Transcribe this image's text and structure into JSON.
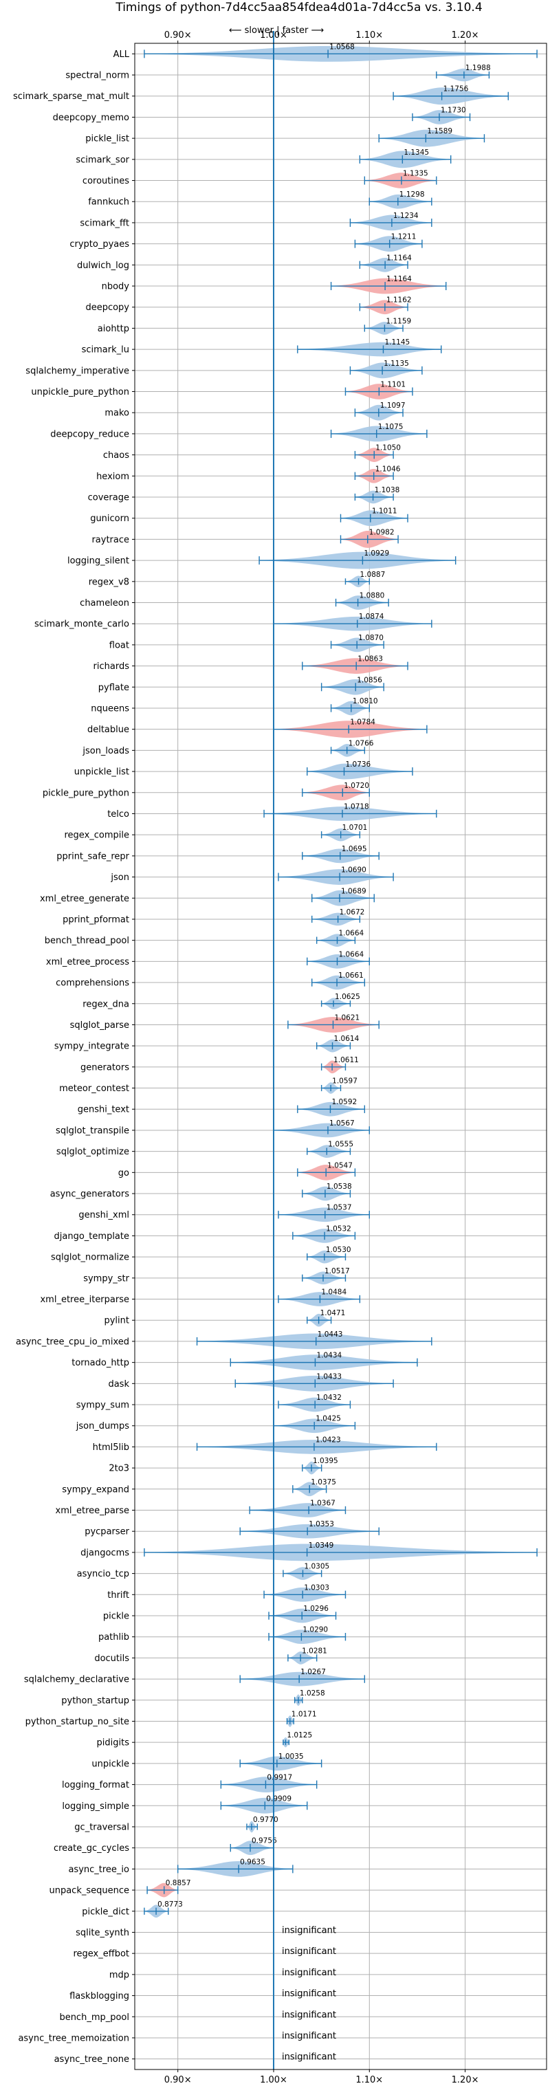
{
  "chart_data": {
    "type": "violin",
    "title": "Timings of python-7d4cc5aa854fdea4d01a-7d4cc5a vs. 3.10.4",
    "direction_note": "⟵ slower | faster ⟶",
    "xlim": [
      0.855,
      1.285
    ],
    "xticks": [
      0.9,
      1.0,
      1.1,
      1.2
    ],
    "xtick_labels": [
      "0.90×",
      "1.00×",
      "1.10×",
      "1.20×"
    ],
    "grid": true,
    "colors": {
      "normal": "#a6c8e6",
      "regressed": "#f4a7a7",
      "line": "#1f77b4",
      "reference": "#1f77b4",
      "grid": "#b0b0b0"
    },
    "insignificant_label": "insignificant",
    "benchmarks": [
      {
        "name": "ALL",
        "value": 1.0568,
        "label": "1.0568",
        "lo": 0.865,
        "hi": 1.275,
        "w": 0.55,
        "c": "n"
      },
      {
        "name": "spectral_norm",
        "value": 1.1988,
        "label": "1.1988",
        "lo": 1.17,
        "hi": 1.225,
        "w": 0.45,
        "c": "n"
      },
      {
        "name": "scimark_sparse_mat_mult",
        "value": 1.1756,
        "label": "1.1756",
        "lo": 1.125,
        "hi": 1.245,
        "w": 0.6,
        "c": "n"
      },
      {
        "name": "deepcopy_memo",
        "value": 1.173,
        "label": "1.1730",
        "lo": 1.145,
        "hi": 1.205,
        "w": 0.5,
        "c": "n"
      },
      {
        "name": "pickle_list",
        "value": 1.1589,
        "label": "1.1589",
        "lo": 1.11,
        "hi": 1.22,
        "w": 0.6,
        "c": "n"
      },
      {
        "name": "scimark_sor",
        "value": 1.1345,
        "label": "1.1345",
        "lo": 1.09,
        "hi": 1.185,
        "w": 0.6,
        "c": "n"
      },
      {
        "name": "coroutines",
        "value": 1.1335,
        "label": "1.1335",
        "lo": 1.095,
        "hi": 1.17,
        "w": 0.55,
        "c": "r"
      },
      {
        "name": "fannkuch",
        "value": 1.1298,
        "label": "1.1298",
        "lo": 1.1,
        "hi": 1.165,
        "w": 0.5,
        "c": "n"
      },
      {
        "name": "scimark_fft",
        "value": 1.1234,
        "label": "1.1234",
        "lo": 1.08,
        "hi": 1.165,
        "w": 0.55,
        "c": "n"
      },
      {
        "name": "crypto_pyaes",
        "value": 1.1211,
        "label": "1.1211",
        "lo": 1.085,
        "hi": 1.155,
        "w": 0.55,
        "c": "n"
      },
      {
        "name": "dulwich_log",
        "value": 1.1164,
        "label": "1.1164",
        "lo": 1.09,
        "hi": 1.14,
        "w": 0.5,
        "c": "n"
      },
      {
        "name": "nbody",
        "value": 1.1164,
        "label": "1.1164",
        "lo": 1.06,
        "hi": 1.18,
        "w": 0.55,
        "c": "r"
      },
      {
        "name": "deepcopy",
        "value": 1.1162,
        "label": "1.1162",
        "lo": 1.09,
        "hi": 1.14,
        "w": 0.5,
        "c": "r"
      },
      {
        "name": "aiohttp",
        "value": 1.1159,
        "label": "1.1159",
        "lo": 1.095,
        "hi": 1.135,
        "w": 0.45,
        "c": "n"
      },
      {
        "name": "scimark_lu",
        "value": 1.1145,
        "label": "1.1145",
        "lo": 1.025,
        "hi": 1.175,
        "w": 0.5,
        "c": "n"
      },
      {
        "name": "sqlalchemy_imperative",
        "value": 1.1135,
        "label": "1.1135",
        "lo": 1.08,
        "hi": 1.155,
        "w": 0.55,
        "c": "n"
      },
      {
        "name": "unpickle_pure_python",
        "value": 1.1101,
        "label": "1.1101",
        "lo": 1.075,
        "hi": 1.145,
        "w": 0.55,
        "c": "r"
      },
      {
        "name": "mako",
        "value": 1.1097,
        "label": "1.1097",
        "lo": 1.085,
        "hi": 1.135,
        "w": 0.55,
        "c": "n"
      },
      {
        "name": "deepcopy_reduce",
        "value": 1.1075,
        "label": "1.1075",
        "lo": 1.06,
        "hi": 1.16,
        "w": 0.55,
        "c": "n"
      },
      {
        "name": "chaos",
        "value": 1.105,
        "label": "1.1050",
        "lo": 1.085,
        "hi": 1.125,
        "w": 0.5,
        "c": "r"
      },
      {
        "name": "hexiom",
        "value": 1.1046,
        "label": "1.1046",
        "lo": 1.085,
        "hi": 1.125,
        "w": 0.5,
        "c": "r"
      },
      {
        "name": "coverage",
        "value": 1.1038,
        "label": "1.1038",
        "lo": 1.085,
        "hi": 1.125,
        "w": 0.45,
        "c": "n"
      },
      {
        "name": "gunicorn",
        "value": 1.1011,
        "label": "1.1011",
        "lo": 1.07,
        "hi": 1.14,
        "w": 0.55,
        "c": "n"
      },
      {
        "name": "raytrace",
        "value": 1.0982,
        "label": "1.0982",
        "lo": 1.07,
        "hi": 1.13,
        "w": 0.6,
        "c": "r"
      },
      {
        "name": "logging_silent",
        "value": 1.0929,
        "label": "1.0929",
        "lo": 0.985,
        "hi": 1.19,
        "w": 0.6,
        "c": "n"
      },
      {
        "name": "regex_v8",
        "value": 1.0887,
        "label": "1.0887",
        "lo": 1.075,
        "hi": 1.1,
        "w": 0.4,
        "c": "n"
      },
      {
        "name": "chameleon",
        "value": 1.088,
        "label": "1.0880",
        "lo": 1.065,
        "hi": 1.12,
        "w": 0.5,
        "c": "n"
      },
      {
        "name": "scimark_monte_carlo",
        "value": 1.0874,
        "label": "1.0874",
        "lo": 1.0,
        "hi": 1.165,
        "w": 0.5,
        "c": "n"
      },
      {
        "name": "float",
        "value": 1.087,
        "label": "1.0870",
        "lo": 1.06,
        "hi": 1.115,
        "w": 0.5,
        "c": "n"
      },
      {
        "name": "richards",
        "value": 1.0863,
        "label": "1.0863",
        "lo": 1.03,
        "hi": 1.14,
        "w": 0.55,
        "c": "r"
      },
      {
        "name": "pyflate",
        "value": 1.0856,
        "label": "1.0856",
        "lo": 1.05,
        "hi": 1.115,
        "w": 0.55,
        "c": "n"
      },
      {
        "name": "nqueens",
        "value": 1.081,
        "label": "1.0810",
        "lo": 1.06,
        "hi": 1.1,
        "w": 0.5,
        "c": "n"
      },
      {
        "name": "deltablue",
        "value": 1.0784,
        "label": "1.0784",
        "lo": 1.0,
        "hi": 1.16,
        "w": 0.6,
        "c": "r"
      },
      {
        "name": "json_loads",
        "value": 1.0766,
        "label": "1.0766",
        "lo": 1.06,
        "hi": 1.095,
        "w": 0.45,
        "c": "n"
      },
      {
        "name": "unpickle_list",
        "value": 1.0736,
        "label": "1.0736",
        "lo": 1.035,
        "hi": 1.145,
        "w": 0.55,
        "c": "n"
      },
      {
        "name": "pickle_pure_python",
        "value": 1.072,
        "label": "1.0720",
        "lo": 1.03,
        "hi": 1.1,
        "w": 0.55,
        "c": "r"
      },
      {
        "name": "telco",
        "value": 1.0718,
        "label": "1.0718",
        "lo": 0.99,
        "hi": 1.17,
        "w": 0.5,
        "c": "n"
      },
      {
        "name": "regex_compile",
        "value": 1.0701,
        "label": "1.0701",
        "lo": 1.05,
        "hi": 1.09,
        "w": 0.45,
        "c": "n"
      },
      {
        "name": "pprint_safe_repr",
        "value": 1.0695,
        "label": "1.0695",
        "lo": 1.03,
        "hi": 1.11,
        "w": 0.5,
        "c": "n"
      },
      {
        "name": "json",
        "value": 1.069,
        "label": "1.0690",
        "lo": 1.005,
        "hi": 1.125,
        "w": 0.55,
        "c": "n"
      },
      {
        "name": "xml_etree_generate",
        "value": 1.0689,
        "label": "1.0689",
        "lo": 1.04,
        "hi": 1.105,
        "w": 0.55,
        "c": "n"
      },
      {
        "name": "pprint_pformat",
        "value": 1.0672,
        "label": "1.0672",
        "lo": 1.04,
        "hi": 1.09,
        "w": 0.45,
        "c": "n"
      },
      {
        "name": "bench_thread_pool",
        "value": 1.0664,
        "label": "1.0664",
        "lo": 1.045,
        "hi": 1.085,
        "w": 0.45,
        "c": "n"
      },
      {
        "name": "xml_etree_process",
        "value": 1.0664,
        "label": "1.0664",
        "lo": 1.035,
        "hi": 1.1,
        "w": 0.5,
        "c": "n"
      },
      {
        "name": "comprehensions",
        "value": 1.0661,
        "label": "1.0661",
        "lo": 1.04,
        "hi": 1.095,
        "w": 0.5,
        "c": "n"
      },
      {
        "name": "regex_dna",
        "value": 1.0625,
        "label": "1.0625",
        "lo": 1.05,
        "hi": 1.08,
        "w": 0.4,
        "c": "n"
      },
      {
        "name": "sqlglot_parse",
        "value": 1.0621,
        "label": "1.0621",
        "lo": 1.015,
        "hi": 1.11,
        "w": 0.55,
        "c": "r"
      },
      {
        "name": "sympy_integrate",
        "value": 1.0614,
        "label": "1.0614",
        "lo": 1.045,
        "hi": 1.08,
        "w": 0.45,
        "c": "n"
      },
      {
        "name": "generators",
        "value": 1.0611,
        "label": "1.0611",
        "lo": 1.05,
        "hi": 1.075,
        "w": 0.45,
        "c": "r"
      },
      {
        "name": "meteor_contest",
        "value": 1.0597,
        "label": "1.0597",
        "lo": 1.05,
        "hi": 1.07,
        "w": 0.4,
        "c": "n"
      },
      {
        "name": "genshi_text",
        "value": 1.0592,
        "label": "1.0592",
        "lo": 1.025,
        "hi": 1.095,
        "w": 0.5,
        "c": "n"
      },
      {
        "name": "sqlglot_transpile",
        "value": 1.0567,
        "label": "1.0567",
        "lo": 1.0,
        "hi": 1.1,
        "w": 0.5,
        "c": "n"
      },
      {
        "name": "sqlglot_optimize",
        "value": 1.0555,
        "label": "1.0555",
        "lo": 1.035,
        "hi": 1.08,
        "w": 0.45,
        "c": "n"
      },
      {
        "name": "go",
        "value": 1.0547,
        "label": "1.0547",
        "lo": 1.025,
        "hi": 1.085,
        "w": 0.55,
        "c": "r"
      },
      {
        "name": "async_generators",
        "value": 1.0538,
        "label": "1.0538",
        "lo": 1.03,
        "hi": 1.08,
        "w": 0.5,
        "c": "n"
      },
      {
        "name": "genshi_xml",
        "value": 1.0537,
        "label": "1.0537",
        "lo": 1.005,
        "hi": 1.1,
        "w": 0.5,
        "c": "n"
      },
      {
        "name": "django_template",
        "value": 1.0532,
        "label": "1.0532",
        "lo": 1.02,
        "hi": 1.085,
        "w": 0.5,
        "c": "n"
      },
      {
        "name": "sqlglot_normalize",
        "value": 1.053,
        "label": "1.0530",
        "lo": 1.035,
        "hi": 1.075,
        "w": 0.45,
        "c": "n"
      },
      {
        "name": "sympy_str",
        "value": 1.0517,
        "label": "1.0517",
        "lo": 1.03,
        "hi": 1.075,
        "w": 0.45,
        "c": "n"
      },
      {
        "name": "xml_etree_iterparse",
        "value": 1.0484,
        "label": "1.0484",
        "lo": 1.005,
        "hi": 1.09,
        "w": 0.5,
        "c": "n"
      },
      {
        "name": "pylint",
        "value": 1.0471,
        "label": "1.0471",
        "lo": 1.035,
        "hi": 1.06,
        "w": 0.45,
        "c": "n"
      },
      {
        "name": "async_tree_cpu_io_mixed",
        "value": 1.0443,
        "label": "1.0443",
        "lo": 0.92,
        "hi": 1.165,
        "w": 0.55,
        "c": "n"
      },
      {
        "name": "tornado_http",
        "value": 1.0434,
        "label": "1.0434",
        "lo": 0.955,
        "hi": 1.15,
        "w": 0.55,
        "c": "n"
      },
      {
        "name": "dask",
        "value": 1.0433,
        "label": "1.0433",
        "lo": 0.96,
        "hi": 1.125,
        "w": 0.55,
        "c": "n"
      },
      {
        "name": "sympy_sum",
        "value": 1.0432,
        "label": "1.0432",
        "lo": 1.005,
        "hi": 1.08,
        "w": 0.5,
        "c": "n"
      },
      {
        "name": "json_dumps",
        "value": 1.0425,
        "label": "1.0425",
        "lo": 1.0,
        "hi": 1.085,
        "w": 0.5,
        "c": "n"
      },
      {
        "name": "html5lib",
        "value": 1.0423,
        "label": "1.0423",
        "lo": 0.92,
        "hi": 1.17,
        "w": 0.5,
        "c": "n"
      },
      {
        "name": "2to3",
        "value": 1.0395,
        "label": "1.0395",
        "lo": 1.03,
        "hi": 1.05,
        "w": 0.45,
        "c": "n"
      },
      {
        "name": "sympy_expand",
        "value": 1.0375,
        "label": "1.0375",
        "lo": 1.02,
        "hi": 1.055,
        "w": 0.5,
        "c": "n"
      },
      {
        "name": "xml_etree_parse",
        "value": 1.0367,
        "label": "1.0367",
        "lo": 0.975,
        "hi": 1.075,
        "w": 0.5,
        "c": "n"
      },
      {
        "name": "pycparser",
        "value": 1.0353,
        "label": "1.0353",
        "lo": 0.965,
        "hi": 1.11,
        "w": 0.5,
        "c": "n"
      },
      {
        "name": "djangocms",
        "value": 1.0349,
        "label": "1.0349",
        "lo": 0.865,
        "hi": 1.275,
        "w": 0.6,
        "c": "n"
      },
      {
        "name": "asyncio_tcp",
        "value": 1.0305,
        "label": "1.0305",
        "lo": 1.01,
        "hi": 1.05,
        "w": 0.45,
        "c": "n"
      },
      {
        "name": "thrift",
        "value": 1.0303,
        "label": "1.0303",
        "lo": 0.99,
        "hi": 1.075,
        "w": 0.5,
        "c": "n"
      },
      {
        "name": "pickle",
        "value": 1.0296,
        "label": "1.0296",
        "lo": 0.995,
        "hi": 1.065,
        "w": 0.5,
        "c": "n"
      },
      {
        "name": "pathlib",
        "value": 1.029,
        "label": "1.0290",
        "lo": 0.995,
        "hi": 1.075,
        "w": 0.5,
        "c": "n"
      },
      {
        "name": "docutils",
        "value": 1.0281,
        "label": "1.0281",
        "lo": 1.015,
        "hi": 1.045,
        "w": 0.45,
        "c": "n"
      },
      {
        "name": "sqlalchemy_declarative",
        "value": 1.0267,
        "label": "1.0267",
        "lo": 0.965,
        "hi": 1.095,
        "w": 0.5,
        "c": "n"
      },
      {
        "name": "python_startup",
        "value": 1.0258,
        "label": "1.0258",
        "lo": 1.022,
        "hi": 1.03,
        "w": 0.4,
        "c": "n"
      },
      {
        "name": "python_startup_no_site",
        "value": 1.0171,
        "label": "1.0171",
        "lo": 1.014,
        "hi": 1.021,
        "w": 0.4,
        "c": "n"
      },
      {
        "name": "pidigits",
        "value": 1.0125,
        "label": "1.0125",
        "lo": 1.01,
        "hi": 1.016,
        "w": 0.35,
        "c": "n"
      },
      {
        "name": "unpickle",
        "value": 1.0035,
        "label": "1.0035",
        "lo": 0.965,
        "hi": 1.05,
        "w": 0.5,
        "c": "n"
      },
      {
        "name": "logging_format",
        "value": 0.9917,
        "label": "0.9917",
        "lo": 0.945,
        "hi": 1.045,
        "w": 0.55,
        "c": "n"
      },
      {
        "name": "logging_simple",
        "value": 0.9909,
        "label": "0.9909",
        "lo": 0.945,
        "hi": 1.035,
        "w": 0.55,
        "c": "n"
      },
      {
        "name": "gc_traversal",
        "value": 0.977,
        "label": "0.9770",
        "lo": 0.972,
        "hi": 0.983,
        "w": 0.4,
        "c": "n"
      },
      {
        "name": "create_gc_cycles",
        "value": 0.9756,
        "label": "0.9756",
        "lo": 0.955,
        "hi": 1.0,
        "w": 0.5,
        "c": "n"
      },
      {
        "name": "async_tree_io",
        "value": 0.9635,
        "label": "0.9635",
        "lo": 0.9,
        "hi": 1.02,
        "w": 0.55,
        "c": "n"
      },
      {
        "name": "unpack_sequence",
        "value": 0.8857,
        "label": "0.8857",
        "lo": 0.868,
        "hi": 0.9,
        "w": 0.5,
        "c": "r"
      },
      {
        "name": "pickle_dict",
        "value": 0.8773,
        "label": "0.8773",
        "lo": 0.865,
        "hi": 0.89,
        "w": 0.45,
        "c": "n"
      },
      {
        "name": "sqlite_synth",
        "insignificant": true
      },
      {
        "name": "regex_effbot",
        "insignificant": true
      },
      {
        "name": "mdp",
        "insignificant": true
      },
      {
        "name": "flaskblogging",
        "insignificant": true
      },
      {
        "name": "bench_mp_pool",
        "insignificant": true
      },
      {
        "name": "async_tree_memoization",
        "insignificant": true
      },
      {
        "name": "async_tree_none",
        "insignificant": true
      }
    ]
  }
}
